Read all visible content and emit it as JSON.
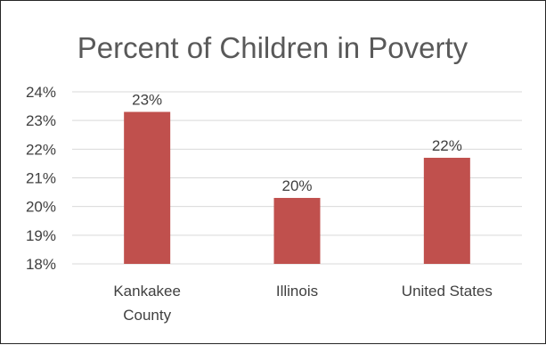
{
  "chart_data": {
    "type": "bar",
    "title": "Percent of Children in Poverty",
    "categories": [
      [
        "Kankakee",
        "County"
      ],
      [
        "Illinois"
      ],
      [
        "United States"
      ]
    ],
    "values": [
      23.3,
      20.3,
      21.7
    ],
    "data_labels": [
      "23%",
      "20%",
      "22%"
    ],
    "yticks": [
      18,
      19,
      20,
      21,
      22,
      23,
      24
    ],
    "ytick_labels": [
      "18%",
      "19%",
      "20%",
      "21%",
      "22%",
      "23%",
      "24%"
    ],
    "ylim": [
      18,
      24
    ],
    "grid": true,
    "legend": "none",
    "bar_color": "#c0504d"
  }
}
